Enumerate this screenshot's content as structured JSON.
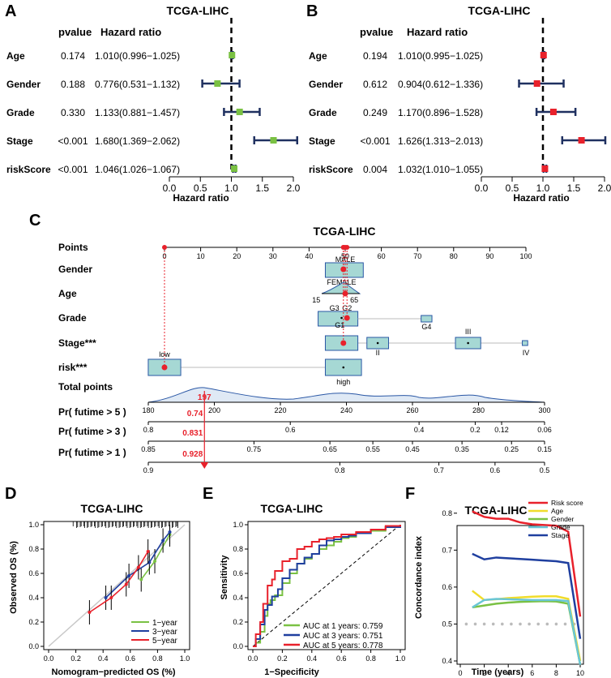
{
  "chart_data": [
    {
      "panel": "A",
      "type": "forest",
      "title": "TCGA-LIHC",
      "col_headers": [
        "pvalue",
        "Hazard ratio"
      ],
      "xlabel": "Hazard ratio",
      "xlim": [
        0,
        2
      ],
      "xticks": [
        0.0,
        0.5,
        1.0,
        1.5,
        2.0
      ],
      "reference": 1.0,
      "marker_color": "#7ac143",
      "rows": [
        {
          "name": "Age",
          "pvalue": "0.174",
          "hr_text": "1.010(0.996−1.025)",
          "hr": 1.01,
          "lo": 0.996,
          "hi": 1.025
        },
        {
          "name": "Gender",
          "pvalue": "0.188",
          "hr_text": "0.776(0.531−1.132)",
          "hr": 0.776,
          "lo": 0.531,
          "hi": 1.132
        },
        {
          "name": "Grade",
          "pvalue": "0.330",
          "hr_text": "1.133(0.881−1.457)",
          "hr": 1.133,
          "lo": 0.881,
          "hi": 1.457
        },
        {
          "name": "Stage",
          "pvalue": "<0.001",
          "hr_text": "1.680(1.369−2.062)",
          "hr": 1.68,
          "lo": 1.369,
          "hi": 2.062
        },
        {
          "name": "riskScore",
          "pvalue": "<0.001",
          "hr_text": "1.046(1.026−1.067)",
          "hr": 1.046,
          "lo": 1.026,
          "hi": 1.067
        }
      ]
    },
    {
      "panel": "B",
      "type": "forest",
      "title": "TCGA-LIHC",
      "col_headers": [
        "pvalue",
        "Hazard ratio"
      ],
      "xlabel": "Hazard ratio",
      "xlim": [
        0,
        2
      ],
      "xticks": [
        0.0,
        0.5,
        1.0,
        1.5,
        2.0
      ],
      "reference": 1.0,
      "marker_color": "#e8212b",
      "rows": [
        {
          "name": "Age",
          "pvalue": "0.194",
          "hr_text": "1.010(0.995−1.025)",
          "hr": 1.01,
          "lo": 0.995,
          "hi": 1.025
        },
        {
          "name": "Gender",
          "pvalue": "0.612",
          "hr_text": "0.904(0.612−1.336)",
          "hr": 0.904,
          "lo": 0.612,
          "hi": 1.336
        },
        {
          "name": "Grade",
          "pvalue": "0.249",
          "hr_text": "1.170(0.896−1.528)",
          "hr": 1.17,
          "lo": 0.896,
          "hi": 1.528
        },
        {
          "name": "Stage",
          "pvalue": "<0.001",
          "hr_text": "1.626(1.313−2.013)",
          "hr": 1.626,
          "lo": 1.313,
          "hi": 2.013
        },
        {
          "name": "riskScore",
          "pvalue": "0.004",
          "hr_text": "1.032(1.010−1.055)",
          "hr": 1.032,
          "lo": 1.01,
          "hi": 1.055
        }
      ]
    },
    {
      "panel": "C",
      "type": "nomogram",
      "title": "TCGA-LIHC",
      "points_scale": {
        "label": "Points",
        "min": 0,
        "max": 100,
        "ticks": [
          0,
          10,
          20,
          30,
          40,
          50,
          60,
          70,
          80,
          90,
          100
        ]
      },
      "variables": [
        {
          "label": "Gender",
          "levels": [
            {
              "name": "MALE",
              "points": 50
            },
            {
              "name": "FEMALE",
              "points": 49
            }
          ],
          "selected_points": 49.5
        },
        {
          "label": "Age",
          "range_labels": [
            "15",
            "65"
          ],
          "selected_points": 50
        },
        {
          "label": "Grade",
          "levels": [
            {
              "name": "G3",
              "points": 47.5
            },
            {
              "name": "G2",
              "points": 50.5
            },
            {
              "name": "G1",
              "points": 48.5
            },
            {
              "name": "G4",
              "points": 72.5
            }
          ],
          "selected_points": 50.5
        },
        {
          "label": "Stage***",
          "levels": [
            {
              "name": "I",
              "points": 49.5
            },
            {
              "name": "II",
              "points": 59
            },
            {
              "name": "III",
              "points": 84
            },
            {
              "name": "IV",
              "points": 100
            }
          ],
          "selected_points": 49.5
        },
        {
          "label": "risk***",
          "levels": [
            {
              "name": "low",
              "points": 0
            },
            {
              "name": "high",
              "points": 49.5
            }
          ],
          "selected_points": 0
        }
      ],
      "total_points": {
        "label": "Total points",
        "min": 180,
        "max": 300,
        "ticks": [
          180,
          200,
          220,
          240,
          260,
          280,
          300
        ],
        "selected": 197,
        "selected_label": "197"
      },
      "probabilities": [
        {
          "label": "Pr( futime > 5 )",
          "ticks": [
            "0.8",
            "0.6",
            "0.4",
            "0.2",
            "0.12",
            "0.06"
          ],
          "tick_totals": [
            180,
            223,
            262,
            279,
            287,
            300
          ],
          "value": "0.74"
        },
        {
          "label": "Pr( futime > 3 )",
          "ticks": [
            "0.85",
            "0.75",
            "0.65",
            "0.55",
            "0.45",
            "0.35",
            "0.25",
            "0.15"
          ],
          "tick_totals": [
            180,
            212,
            235,
            248,
            260,
            275,
            290,
            300
          ],
          "value": "0.831"
        },
        {
          "label": "Pr( futime > 1 )",
          "ticks": [
            "0.9",
            "0.8",
            "0.7",
            "0.6",
            "0.5"
          ],
          "tick_totals": [
            180,
            238,
            268,
            285,
            300
          ],
          "value": "0.928"
        }
      ]
    },
    {
      "panel": "D",
      "type": "calibration",
      "title": "TCGA-LIHC",
      "xlabel": "Nomogram−predicted OS (%)",
      "ylabel": "Observed OS (%)",
      "xlim": [
        0,
        1
      ],
      "ylim": [
        0,
        1
      ],
      "ticks": [
        "0.0",
        "0.2",
        "0.4",
        "0.6",
        "0.8",
        "1.0"
      ],
      "series": [
        {
          "name": "1−year",
          "color": "#7ac143",
          "x": [
            0.68,
            0.78,
            0.89
          ],
          "y": [
            0.55,
            0.7,
            0.92
          ]
        },
        {
          "name": "3−year",
          "color": "#1f3f9f",
          "x": [
            0.42,
            0.59,
            0.74,
            0.84,
            0.89
          ],
          "y": [
            0.4,
            0.58,
            0.69,
            0.87,
            0.94
          ]
        },
        {
          "name": "5−year",
          "color": "#e8212b",
          "x": [
            0.3,
            0.46,
            0.57,
            0.66,
            0.73
          ],
          "y": [
            0.28,
            0.4,
            0.51,
            0.65,
            0.78
          ]
        }
      ]
    },
    {
      "panel": "E",
      "type": "roc",
      "title": "TCGA-LIHC",
      "xlabel": "1−Specificity",
      "ylabel": "Sensitivity",
      "xlim": [
        0,
        1
      ],
      "ylim": [
        0,
        1
      ],
      "ticks": [
        "0.0",
        "0.2",
        "0.4",
        "0.6",
        "0.8",
        "1.0"
      ],
      "series": [
        {
          "name": "AUC at 1 years: 0.759",
          "color": "#7ac143",
          "x": [
            0,
            0.02,
            0.05,
            0.08,
            0.1,
            0.12,
            0.15,
            0.2,
            0.25,
            0.3,
            0.35,
            0.4,
            0.45,
            0.5,
            0.55,
            0.6,
            0.65,
            0.7,
            0.8,
            0.9,
            1
          ],
          "y": [
            0,
            0.03,
            0.12,
            0.25,
            0.35,
            0.38,
            0.42,
            0.52,
            0.6,
            0.68,
            0.72,
            0.76,
            0.8,
            0.83,
            0.86,
            0.89,
            0.9,
            0.93,
            0.95,
            0.98,
            1
          ]
        },
        {
          "name": "AUC at 3 years: 0.751",
          "color": "#1f3f9f",
          "x": [
            0,
            0.02,
            0.05,
            0.08,
            0.1,
            0.13,
            0.17,
            0.2,
            0.25,
            0.3,
            0.35,
            0.4,
            0.45,
            0.5,
            0.55,
            0.6,
            0.65,
            0.7,
            0.8,
            0.9,
            1
          ],
          "y": [
            0,
            0.06,
            0.18,
            0.3,
            0.34,
            0.41,
            0.47,
            0.56,
            0.63,
            0.68,
            0.73,
            0.76,
            0.83,
            0.87,
            0.88,
            0.9,
            0.91,
            0.93,
            0.96,
            0.98,
            1
          ]
        },
        {
          "name": "AUC at 5 years: 0.778",
          "color": "#e8212b",
          "x": [
            0,
            0.02,
            0.05,
            0.07,
            0.1,
            0.13,
            0.15,
            0.2,
            0.25,
            0.3,
            0.35,
            0.4,
            0.45,
            0.5,
            0.55,
            0.6,
            0.7,
            0.8,
            0.9,
            1
          ],
          "y": [
            0,
            0.1,
            0.2,
            0.35,
            0.5,
            0.55,
            0.62,
            0.7,
            0.72,
            0.8,
            0.82,
            0.86,
            0.88,
            0.89,
            0.9,
            0.92,
            0.94,
            0.96,
            0.99,
            1
          ]
        }
      ]
    },
    {
      "panel": "F",
      "type": "line",
      "title": "TCGA-LIHC",
      "xlabel": "Time (years)",
      "ylabel": "Concordance index",
      "xlim": [
        0,
        10
      ],
      "ylim": [
        0.4,
        0.85
      ],
      "xticks": [
        "0",
        "2",
        "4",
        "6",
        "8",
        "10"
      ],
      "yticks": [
        "0.4",
        "0.5",
        "0.6",
        "0.7",
        "0.8"
      ],
      "x": [
        1,
        2,
        3,
        4,
        5,
        6,
        7,
        8,
        9,
        10
      ],
      "reference_y": 0.5,
      "series": [
        {
          "name": "Risk score",
          "color": "#e8212b",
          "values": [
            0.805,
            0.79,
            0.785,
            0.785,
            0.775,
            0.77,
            0.768,
            0.766,
            0.75,
            0.52
          ]
        },
        {
          "name": "Age",
          "color": "#f0dc2b",
          "values": [
            0.59,
            0.565,
            0.567,
            0.57,
            0.572,
            0.574,
            0.575,
            0.575,
            0.568,
            0.4
          ]
        },
        {
          "name": "Gender",
          "color": "#7ac143",
          "values": [
            0.545,
            0.55,
            0.555,
            0.558,
            0.56,
            0.561,
            0.562,
            0.561,
            0.555,
            0.39
          ]
        },
        {
          "name": "Grade",
          "color": "#6ac6d6",
          "values": [
            0.545,
            0.565,
            0.568,
            0.567,
            0.566,
            0.565,
            0.565,
            0.565,
            0.562,
            0.39
          ]
        },
        {
          "name": "Stage",
          "color": "#1f3f9f",
          "values": [
            0.69,
            0.675,
            0.68,
            0.678,
            0.676,
            0.674,
            0.672,
            0.67,
            0.665,
            0.46
          ]
        }
      ]
    }
  ],
  "panel_letters": [
    "A",
    "B",
    "C",
    "D",
    "E",
    "F"
  ]
}
